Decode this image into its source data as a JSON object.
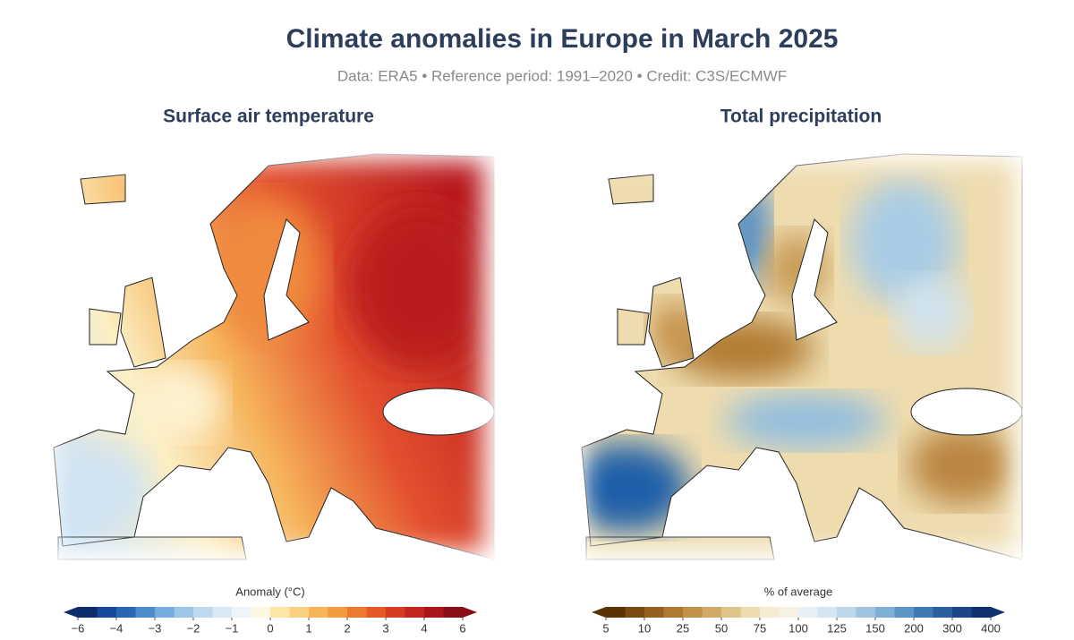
{
  "header": {
    "title": "Climate anomalies in Europe in March 2025",
    "subtitle": "Data: ERA5 • Reference period: 1991–2020 • Credit: C3S/ECMWF"
  },
  "panels": [
    {
      "title": "Surface air temperature",
      "colorbar_label": "Anomaly (°C)",
      "ticks": [
        "−6",
        "−4",
        "−3",
        "−2",
        "−1",
        "0",
        "1",
        "2",
        "3",
        "4",
        "6"
      ]
    },
    {
      "title": "Total precipitation",
      "colorbar_label": "% of average",
      "ticks": [
        "5",
        "10",
        "25",
        "50",
        "75",
        "100",
        "125",
        "150",
        "200",
        "300",
        "400"
      ]
    }
  ]
}
